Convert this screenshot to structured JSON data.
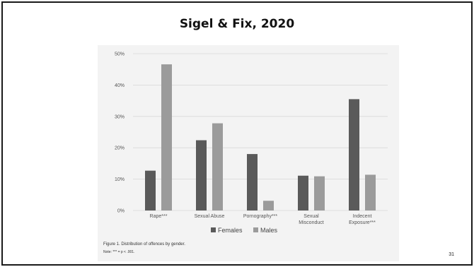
{
  "slide": {
    "title": "Sigel & Fix, 2020",
    "page_number": "31"
  },
  "figure": {
    "caption": "Figure 1. Distribution of offences by gender.",
    "note": "Note: *** = p < .001."
  },
  "colors": {
    "females": "#5a5a5a",
    "males": "#9b9b9b",
    "grid": "#d8d8d8",
    "axis_text": "#555555"
  },
  "chart_data": {
    "type": "bar",
    "categories": [
      "Rape***",
      "Sexual Abuse",
      "Pornography***",
      "Sexual Misconduct",
      "Indecent Exposure***"
    ],
    "series": [
      {
        "name": "Females",
        "values": [
          12.7,
          22.4,
          18.0,
          11.1,
          35.5
        ]
      },
      {
        "name": "Males",
        "values": [
          46.6,
          27.8,
          3.1,
          10.9,
          11.4
        ]
      }
    ],
    "yticks": [
      "0%",
      "10%",
      "20%",
      "30%",
      "40%",
      "50%"
    ],
    "ylim": [
      0,
      50
    ],
    "grid": true,
    "legend": "bottom"
  }
}
